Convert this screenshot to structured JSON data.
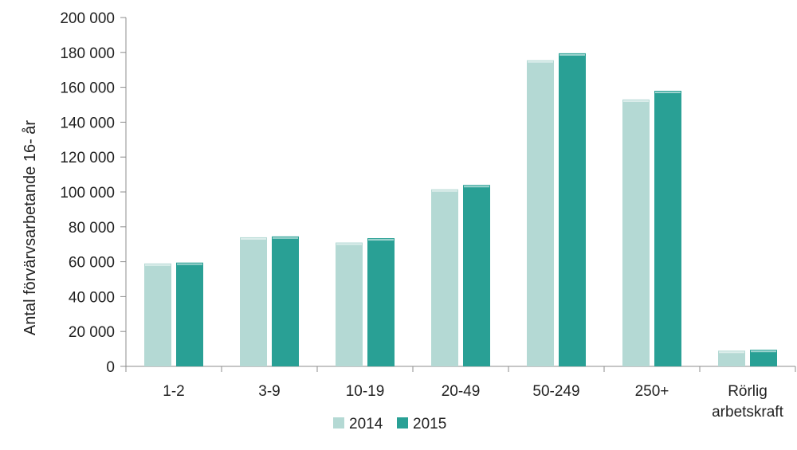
{
  "chart_data": {
    "type": "bar",
    "categories": [
      "1-2",
      "3-9",
      "10-19",
      "20-49",
      "50-249",
      "250+",
      "Rörlig arbetskraft"
    ],
    "series": [
      {
        "name": "2014",
        "color": "#b4d9d4",
        "values": [
          59000,
          74000,
          71000,
          101500,
          175500,
          153000,
          9000
        ]
      },
      {
        "name": "2015",
        "color": "#29a095",
        "values": [
          59500,
          74500,
          73500,
          104000,
          179500,
          158000,
          9500
        ]
      }
    ],
    "ylabel": "Antal förvärvsarbetande 16- år",
    "xlabel": "",
    "ylim": [
      0,
      200000
    ],
    "yticks": [
      0,
      20000,
      40000,
      60000,
      80000,
      100000,
      120000,
      140000,
      160000,
      180000,
      200000
    ],
    "ytick_labels": [
      "0",
      "20 000",
      "40 000",
      "60 000",
      "80 000",
      "100 000",
      "120 000",
      "140 000",
      "160 000",
      "180 000",
      "200 000"
    ],
    "legend_position": "bottom-center",
    "grid": false
  }
}
